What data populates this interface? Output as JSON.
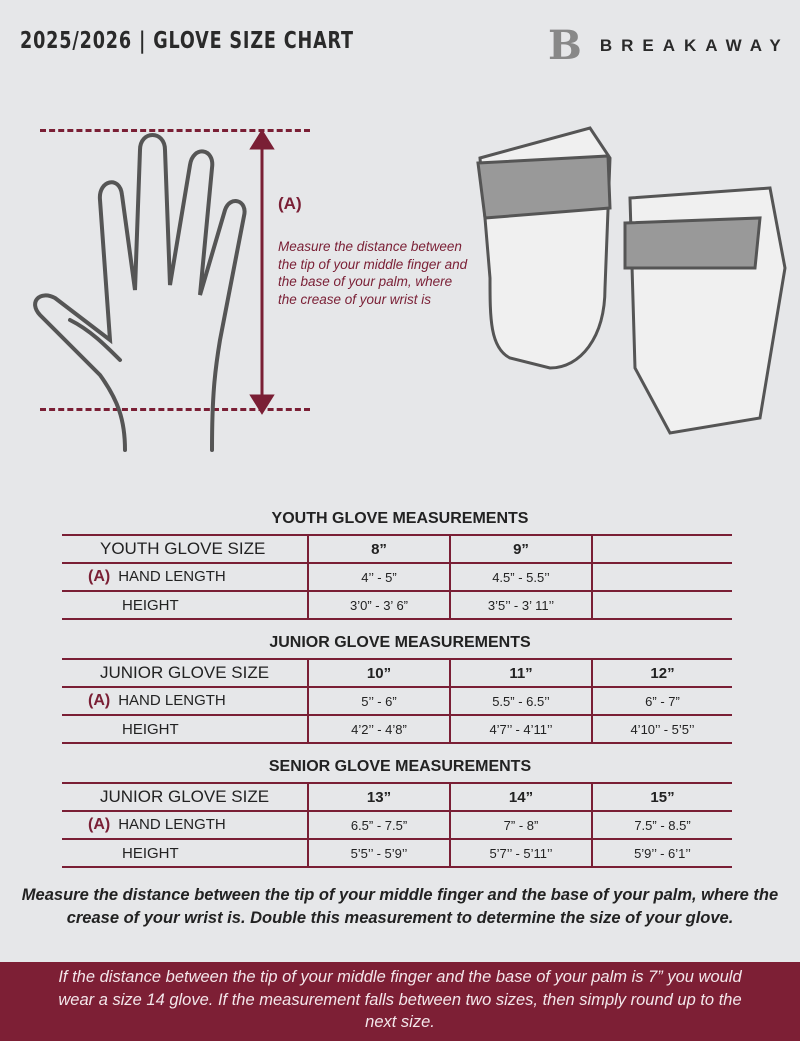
{
  "header": {
    "title": "2025/2026  |  GLOVE SIZE CHART",
    "brand": "BREAKAWAY"
  },
  "diagram": {
    "label": "(A)",
    "description": "Measure the distance between the tip of your middle finger and the base of your palm, where the crease of your wrist is"
  },
  "tables": [
    {
      "title": "YOUTH GLOVE MEASUREMENTS",
      "size_label": "YOUTH GLOVE SIZE",
      "sizes": [
        "8”",
        "9”",
        ""
      ],
      "hand_label": "HAND LENGTH",
      "marker": "(A)",
      "hand_length": [
        "4’’ - 5”",
        "4.5” - 5.5’’",
        ""
      ],
      "height_label": "HEIGHT",
      "height": [
        "3’0” - 3’ 6”",
        "3’5’’ - 3’ 11’’",
        ""
      ]
    },
    {
      "title": "JUNIOR GLOVE MEASUREMENTS",
      "size_label": "JUNIOR GLOVE SIZE",
      "sizes": [
        "10”",
        "11”",
        "12”"
      ],
      "hand_label": "HAND LENGTH",
      "marker": "(A)",
      "hand_length": [
        "5’’ - 6”",
        "5.5” - 6.5’’",
        "6” - 7”"
      ],
      "height_label": "HEIGHT",
      "height": [
        "4’2’’ - 4’8”",
        "4’7’’ - 4’11’’",
        "4’10’’ - 5’5’’"
      ]
    },
    {
      "title": "SENIOR GLOVE MEASUREMENTS",
      "size_label": "JUNIOR GLOVE SIZE",
      "sizes": [
        "13”",
        "14”",
        "15”"
      ],
      "hand_label": "HAND LENGTH",
      "marker": "(A)",
      "hand_length": [
        "6.5” - 7.5”",
        "7” - 8”",
        "7.5” - 8.5”"
      ],
      "height_label": "HEIGHT",
      "height": [
        "5’5’’ - 5’9’’",
        "5’7’’ - 5’11’’",
        "5’9’’ - 6’1’’"
      ]
    }
  ],
  "note": "Measure the distance between the tip of your middle finger and the base of your palm, where the crease of your wrist is. Double this measurement to determine the size of your glove.",
  "footer": "If the distance between the tip of your middle finger and the base of your palm is 7” you would wear a size 14 glove. If the measurement falls between two sizes, then simply round up to the next size.",
  "colors": {
    "accent": "#7a1f35",
    "background": "#e6e7e9"
  }
}
